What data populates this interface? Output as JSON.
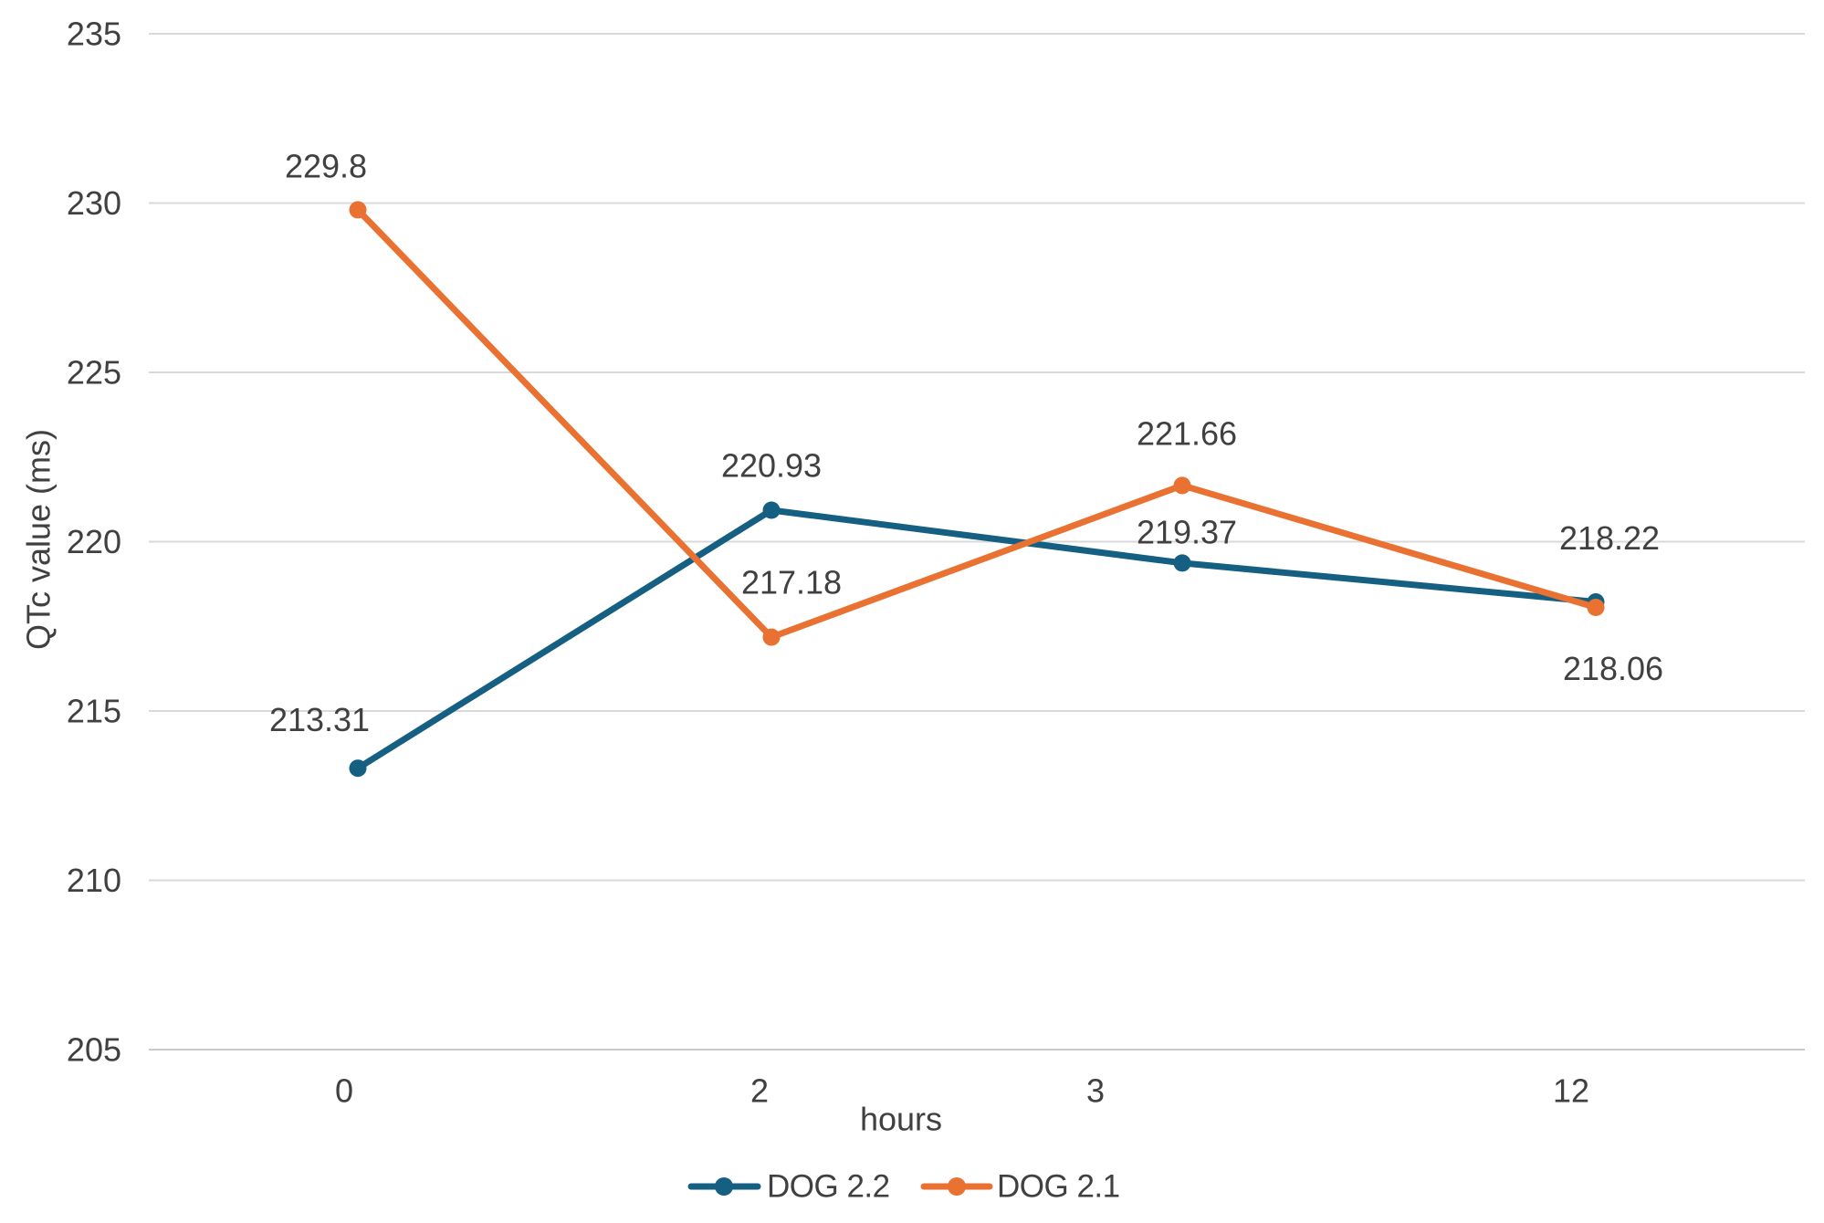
{
  "chart_data": {
    "type": "line",
    "title": "",
    "xlabel": "hours",
    "ylabel": "QTc value (ms)",
    "categories": [
      "0",
      "2",
      "3",
      "12"
    ],
    "series": [
      {
        "name": "DOG 2.2",
        "color": "#156082",
        "values": [
          213.31,
          220.93,
          219.37,
          218.22
        ],
        "labels": [
          "213.31",
          "220.93",
          "219.37",
          "218.22"
        ]
      },
      {
        "name": "DOG 2.1",
        "color": "#E97132",
        "values": [
          229.8,
          217.18,
          221.66,
          218.06
        ],
        "labels": [
          "229.8",
          "217.18",
          "221.66",
          "218.06"
        ]
      }
    ],
    "ylim": [
      205,
      235
    ],
    "ytick_step": 5,
    "yticks": [
      "235",
      "230",
      "225",
      "220",
      "215",
      "210",
      "205"
    ],
    "grid": true,
    "legend_position": "bottom",
    "marker": "circle",
    "data_labels_shown": true,
    "text_color": "#404040",
    "gridline_color": "#D9D9D9",
    "axisline_color": "#C9C9C9"
  }
}
